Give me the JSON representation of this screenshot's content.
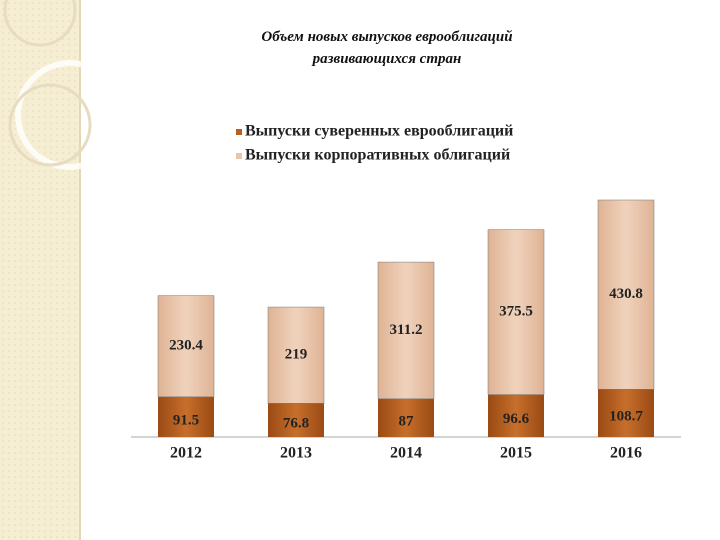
{
  "chart_data": {
    "type": "bar",
    "stacked": true,
    "title": "Объем новых выпусков еврооблигаций развивающихся стран",
    "categories": [
      "2012",
      "2013",
      "2014",
      "2015",
      "2016"
    ],
    "series": [
      {
        "name": "Выпуски суверенных еврооблигаций",
        "color": "#b9601f",
        "values": [
          91.5,
          76.8,
          87,
          96.6,
          108.7
        ]
      },
      {
        "name": "Выпуски корпоративных облигаций",
        "color": "#e9c6aa",
        "values": [
          230.4,
          219,
          311.2,
          375.5,
          430.8
        ]
      }
    ]
  }
}
